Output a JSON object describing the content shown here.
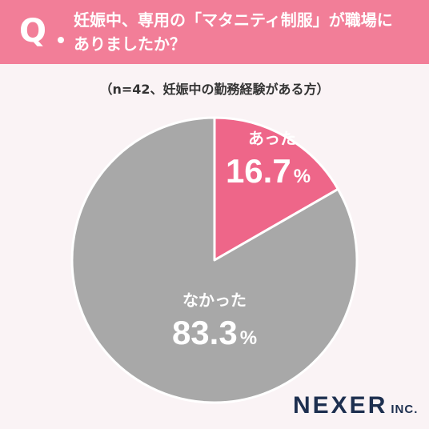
{
  "header": {
    "q_label": "Q",
    "question_line1": "妊娠中、専用の「マタニティ制服」が職場に",
    "question_line2": "ありましたか？"
  },
  "sample_note": "（n=42、妊娠中の勤務経験がある方）",
  "chart_data": {
    "type": "pie",
    "categories": [
      "あった",
      "なかった"
    ],
    "values": [
      16.7,
      83.3
    ],
    "value_labels": [
      "16.7",
      "83.3"
    ],
    "unit": "%",
    "colors": [
      "#ee6689",
      "#a8a8a8"
    ],
    "start": "12 o'clock",
    "direction": "clockwise"
  },
  "brand": {
    "name": "NEXER",
    "suffix": "INC."
  }
}
